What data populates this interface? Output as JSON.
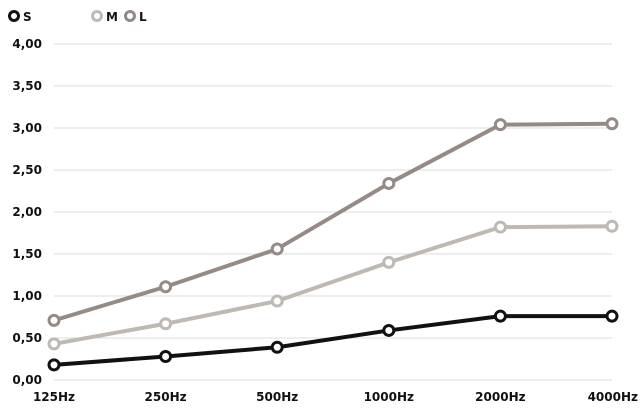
{
  "chart_data": {
    "type": "line",
    "categories": [
      "125Hz",
      "250Hz",
      "500Hz",
      "1000Hz",
      "2000Hz",
      "4000Hz"
    ],
    "series": [
      {
        "name": "S",
        "color": "#111111",
        "values": [
          0.18,
          0.28,
          0.39,
          0.59,
          0.76,
          0.76
        ]
      },
      {
        "name": "M",
        "color": "#bfb9b4",
        "values": [
          0.43,
          0.67,
          0.94,
          1.4,
          1.82,
          1.83
        ]
      },
      {
        "name": "L",
        "color": "#958a86",
        "values": [
          0.71,
          1.11,
          1.56,
          2.34,
          3.04,
          3.05
        ]
      }
    ],
    "ylim": [
      0,
      4
    ],
    "yticks": [
      "0,00",
      "0,50",
      "1,00",
      "1,50",
      "2,00",
      "2,50",
      "3,00",
      "3,50",
      "4,00"
    ],
    "ytick_values": [
      0,
      0.5,
      1,
      1.5,
      2,
      2.5,
      3,
      3.5,
      4
    ],
    "grid": true,
    "legend_position": "top-left"
  }
}
